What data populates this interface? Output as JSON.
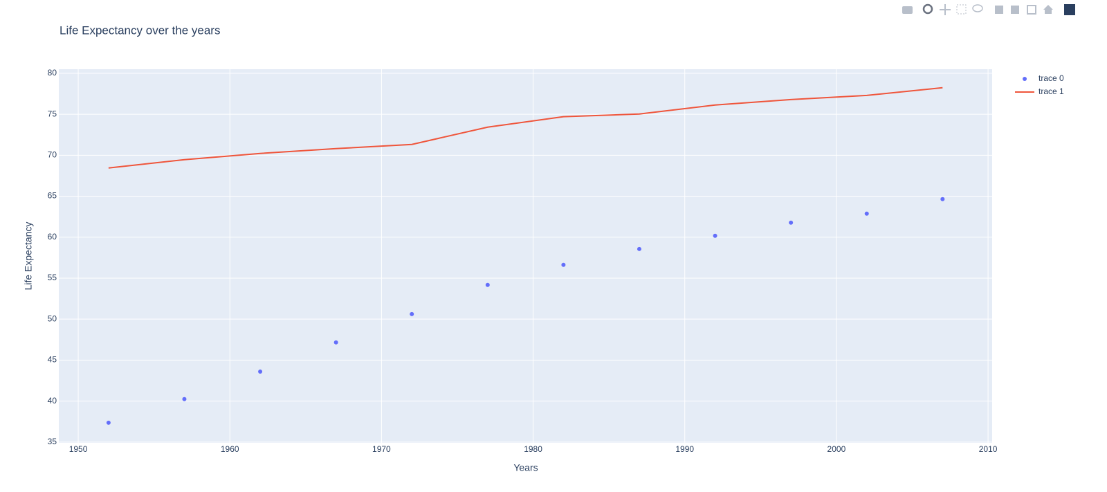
{
  "chart_data": {
    "type": "scatter",
    "title": "Life Expectancy over the years",
    "x_label": "Years",
    "y_label": "Life Expectancy",
    "x": [
      1952,
      1957,
      1962,
      1967,
      1972,
      1977,
      1982,
      1987,
      1992,
      1997,
      2002,
      2007
    ],
    "series": [
      {
        "name": "trace 0",
        "mode": "markers",
        "color": "#636efa",
        "values": [
          37.36,
          40.24,
          43.6,
          47.16,
          50.62,
          54.17,
          56.62,
          58.56,
          60.17,
          61.77,
          62.87,
          64.65
        ]
      },
      {
        "name": "trace 1",
        "mode": "lines",
        "color": "#ef553b",
        "values": [
          68.45,
          69.46,
          70.22,
          70.81,
          71.32,
          73.43,
          74.7,
          75.03,
          76.13,
          76.8,
          77.3,
          78.24
        ]
      }
    ],
    "xlim": [
      1948.72,
      2010.27
    ],
    "ylim": [
      34.9,
      80.5
    ],
    "xticks": [
      1950,
      1960,
      1970,
      1980,
      1990,
      2000,
      2010
    ],
    "yticks": [
      35,
      40,
      45,
      50,
      55,
      60,
      65,
      70,
      75,
      80
    ],
    "grid": true
  }
}
